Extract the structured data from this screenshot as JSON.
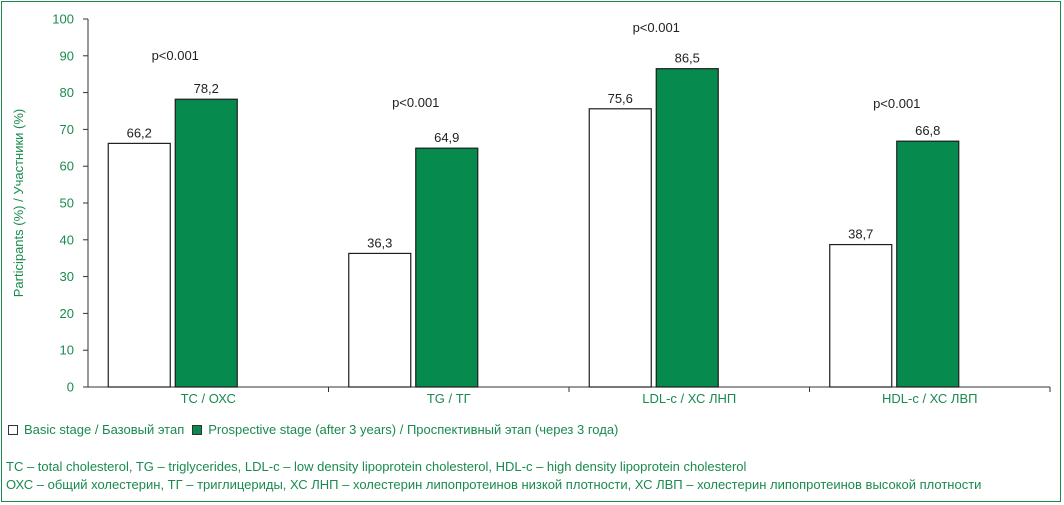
{
  "colors": {
    "accent": "#1a8a4f",
    "series_basic": "#ffffff",
    "series_prospective": "#078a4d",
    "bar_stroke": "#1e1e1e"
  },
  "chart_data": {
    "type": "bar",
    "categories": [
      "TC / ОХС",
      "TG / ТГ",
      "LDL-c / ХС ЛНП",
      "HDL-c / ХС ЛВП"
    ],
    "series": [
      {
        "name": "Basic stage / Базовый этап",
        "values": [
          66.2,
          36.3,
          75.6,
          38.7
        ],
        "labels": [
          "66,2",
          "36,3",
          "75,6",
          "38,7"
        ]
      },
      {
        "name": "Prospective stage (after 3 years) / Проспективный этап (через 3 года)",
        "values": [
          78.2,
          64.9,
          86.5,
          66.8
        ],
        "labels": [
          "78,2",
          "64,9",
          "86,5",
          "66,8"
        ]
      }
    ],
    "annotations": [
      "p<0.001",
      "p<0.001",
      "p<0.001",
      "p<0.001"
    ],
    "ylabel": "Participants (%) / Участники (%)",
    "xlabel": "",
    "ylim": [
      0,
      100
    ],
    "yticks": [
      0,
      10,
      20,
      30,
      40,
      50,
      60,
      70,
      80,
      90,
      100
    ],
    "grid": false,
    "legend_position": "bottom-left"
  },
  "notes": {
    "line1": "TC – total cholesterol, TG – triglycerides, LDL-c – low density lipoprotein cholesterol, HDL-c – high density lipoprotein cholesterol",
    "line2": "ОХС – общий холестерин, ТГ – триглицериды, ХС ЛНП – холестерин липопротеинов низкой плотности, ХС ЛВП – холестерин липопротеинов высокой плотности"
  }
}
